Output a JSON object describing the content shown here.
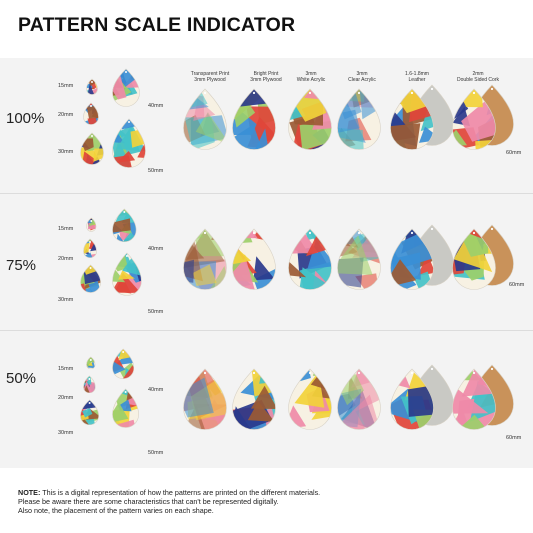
{
  "title": "PATTERN SCALE INDICATOR",
  "rows": [
    {
      "scale": "100%"
    },
    {
      "scale": "75%"
    },
    {
      "scale": "50%"
    }
  ],
  "sizes": {
    "s15": "15mm",
    "s20": "20mm",
    "s30": "30mm",
    "s40": "40mm",
    "s50": "50mm",
    "s60": "60mm"
  },
  "materials": [
    {
      "line1": "Transparent Print",
      "line2": "3mm Plywood"
    },
    {
      "line1": "Bright Print",
      "line2": "3mm Plywood"
    },
    {
      "line1": "3mm",
      "line2": "White Acrylic"
    },
    {
      "line1": "3mm",
      "line2": "Clear Acrylic"
    },
    {
      "line1": "1.6-1.8mm",
      "line2": "Leather"
    },
    {
      "line1": "2mm",
      "line2": "Double Sided Cork"
    }
  ],
  "note": {
    "label": "NOTE:",
    "line1": "This is a digital representation of how the patterns are printed on the different materials.",
    "line2": "Please be aware there are some characteristics that can't be represented digitally.",
    "line3": "Also note, the placement of the pattern varies on each shape."
  },
  "colors": {
    "band": "#f3f3f3",
    "blue": "#3a8fd6",
    "pink": "#ef8aa8",
    "yellow": "#f2d23a",
    "green": "#9ccf6a",
    "navy": "#2a3a8c",
    "red": "#e0453a",
    "teal": "#43c2c8",
    "brown": "#9b5a34",
    "cream": "#f7f1e3",
    "leather": "#c9c9c4",
    "cork": "#c9925a"
  }
}
